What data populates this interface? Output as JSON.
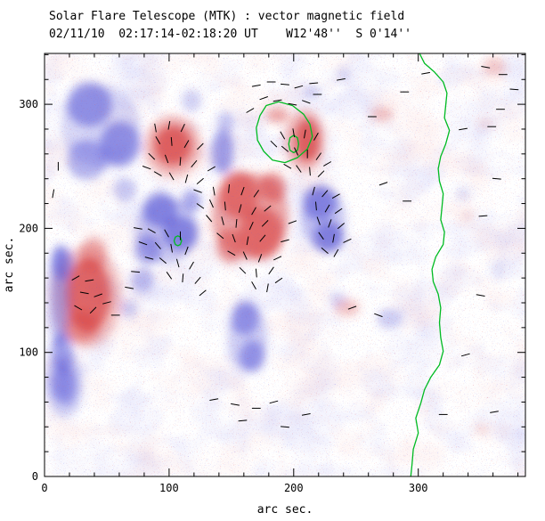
{
  "header": {
    "title": "Solar Flare Telescope (MTK) : vector magnetic field",
    "subtitle": "02/11/10  02:17:14-02:18:20 UT    W12'48''  S 0'14''"
  },
  "chart_data": {
    "type": "heatmap",
    "title": "Solar Flare Telescope (MTK) : vector magnetic field",
    "subtitle": "02/11/10  02:17:14-02:18:20 UT    W12'48''  S 0'14''",
    "xlabel": "arc sec.",
    "ylabel": "arc sec.",
    "xlim": [
      0,
      386
    ],
    "ylim": [
      0,
      341
    ],
    "xticks": [
      0,
      100,
      200,
      300
    ],
    "yticks": [
      0,
      100,
      200,
      300
    ],
    "minor_tick": 20,
    "grid": false,
    "legend": "none",
    "colors": {
      "positive": "#d84040",
      "negative": "#4848d4",
      "contour": "#00bb22",
      "vector": "#000000",
      "background": "#ffffff"
    },
    "blobs_format": "[x, y, rx, ry, opacity, polarity] polarity +1=red(positive) -1=blue(negative), units arc sec",
    "blobs": [
      [
        35,
        146,
        18,
        30,
        0.7,
        1
      ],
      [
        34,
        145,
        28,
        41,
        0.3,
        1
      ],
      [
        39,
        179,
        11,
        14,
        0.4,
        1
      ],
      [
        30,
        121,
        14,
        13,
        0.45,
        1
      ],
      [
        103,
        267,
        15,
        16,
        0.75,
        1
      ],
      [
        103,
        266,
        23,
        25,
        0.35,
        1
      ],
      [
        165,
        210,
        31,
        35,
        0.45,
        1
      ],
      [
        156,
        227,
        16,
        19,
        0.6,
        1
      ],
      [
        174,
        196,
        18,
        21,
        0.6,
        1
      ],
      [
        149,
        186,
        11,
        14,
        0.5,
        1
      ],
      [
        183,
        233,
        11,
        12,
        0.55,
        1
      ],
      [
        211,
        271,
        10,
        17,
        0.75,
        1
      ],
      [
        209,
        271,
        16,
        25,
        0.35,
        1
      ],
      [
        187,
        291,
        9,
        6,
        0.45,
        1
      ],
      [
        271,
        292,
        9,
        6,
        0.3,
        1
      ],
      [
        243,
        136,
        10,
        7,
        0.3,
        1
      ],
      [
        361,
        330,
        9,
        8,
        0.25,
        1
      ],
      [
        339,
        210,
        6,
        5,
        0.18,
        1
      ],
      [
        354,
        285,
        6,
        4,
        0.18,
        1
      ],
      [
        351,
        38,
        6,
        5,
        0.18,
        1
      ],
      [
        36,
        300,
        18,
        18,
        0.5,
        -1
      ],
      [
        61,
        268,
        16,
        18,
        0.5,
        -1
      ],
      [
        34,
        255,
        16,
        16,
        0.4,
        -1
      ],
      [
        45,
        282,
        32,
        33,
        0.22,
        -1
      ],
      [
        65,
        231,
        9,
        10,
        0.3,
        -1
      ],
      [
        93,
        215,
        14,
        14,
        0.55,
        -1
      ],
      [
        109,
        196,
        14,
        14,
        0.55,
        -1
      ],
      [
        83,
        183,
        11,
        12,
        0.45,
        -1
      ],
      [
        98,
        198,
        25,
        27,
        0.28,
        -1
      ],
      [
        118,
        222,
        8,
        9,
        0.45,
        -1
      ],
      [
        12,
        145,
        8,
        42,
        0.4,
        -1
      ],
      [
        14,
        172,
        9,
        14,
        0.45,
        -1
      ],
      [
        14,
        100,
        9,
        16,
        0.45,
        -1
      ],
      [
        143,
        262,
        9,
        18,
        0.5,
        -1
      ],
      [
        145,
        286,
        7,
        8,
        0.3,
        -1
      ],
      [
        221,
        221,
        14,
        14,
        0.55,
        -1
      ],
      [
        228,
        193,
        12,
        13,
        0.55,
        -1
      ],
      [
        224,
        207,
        18,
        25,
        0.28,
        -1
      ],
      [
        161,
        128,
        11,
        14,
        0.45,
        -1
      ],
      [
        167,
        97,
        10,
        13,
        0.45,
        -1
      ],
      [
        163,
        112,
        16,
        27,
        0.26,
        -1
      ],
      [
        16,
        74,
        10,
        16,
        0.45,
        -1
      ],
      [
        16,
        74,
        15,
        27,
        0.26,
        -1
      ],
      [
        277,
        127,
        10,
        8,
        0.28,
        -1
      ],
      [
        68,
        135,
        7,
        7,
        0.28,
        -1
      ],
      [
        336,
        228,
        6,
        6,
        0.16,
        -1
      ],
      [
        215,
        310,
        7,
        5,
        0.28,
        -1
      ],
      [
        364,
        167,
        6,
        8,
        0.16,
        -1
      ],
      [
        240,
        324,
        6,
        4,
        0.22,
        -1
      ],
      [
        118,
        303,
        8,
        9,
        0.25,
        -1
      ],
      [
        79,
        158,
        9,
        10,
        0.35,
        -1
      ],
      [
        235,
        143,
        7,
        6,
        0.22,
        -1
      ]
    ],
    "vectors_format": "[x, y, azimuth_deg] short transverse-field segment centered at (x,y)",
    "vectors": [
      [
        89,
        281,
        100
      ],
      [
        100,
        283,
        80
      ],
      [
        111,
        281,
        65
      ],
      [
        91,
        271,
        120
      ],
      [
        102,
        270,
        95
      ],
      [
        114,
        268,
        60
      ],
      [
        125,
        266,
        45
      ],
      [
        86,
        258,
        135
      ],
      [
        98,
        256,
        110
      ],
      [
        109,
        254,
        85
      ],
      [
        120,
        252,
        50
      ],
      [
        91,
        244,
        150
      ],
      [
        102,
        242,
        120
      ],
      [
        114,
        240,
        75
      ],
      [
        125,
        238,
        40
      ],
      [
        134,
        248,
        30
      ],
      [
        82,
        249,
        160
      ],
      [
        170,
        315,
        10
      ],
      [
        182,
        318,
        0
      ],
      [
        193,
        316,
        175
      ],
      [
        204,
        314,
        15
      ],
      [
        216,
        317,
        5
      ],
      [
        176,
        305,
        20
      ],
      [
        187,
        303,
        10
      ],
      [
        199,
        300,
        170
      ],
      [
        210,
        302,
        160
      ],
      [
        165,
        295,
        30
      ],
      [
        219,
        308,
        0
      ],
      [
        191,
        275,
        120
      ],
      [
        200,
        277,
        100
      ],
      [
        209,
        276,
        80
      ],
      [
        218,
        274,
        60
      ],
      [
        193,
        264,
        140
      ],
      [
        202,
        262,
        115
      ],
      [
        211,
        260,
        90
      ],
      [
        220,
        258,
        55
      ],
      [
        195,
        250,
        150
      ],
      [
        204,
        248,
        125
      ],
      [
        213,
        246,
        95
      ],
      [
        222,
        244,
        45
      ],
      [
        227,
        252,
        30
      ],
      [
        184,
        268,
        135
      ],
      [
        136,
        230,
        100
      ],
      [
        148,
        232,
        85
      ],
      [
        159,
        230,
        70
      ],
      [
        170,
        228,
        55
      ],
      [
        134,
        220,
        115
      ],
      [
        145,
        218,
        95
      ],
      [
        157,
        216,
        75
      ],
      [
        168,
        214,
        60
      ],
      [
        179,
        216,
        40
      ],
      [
        132,
        208,
        130
      ],
      [
        143,
        206,
        105
      ],
      [
        154,
        204,
        85
      ],
      [
        166,
        202,
        65
      ],
      [
        177,
        204,
        45
      ],
      [
        141,
        194,
        140
      ],
      [
        152,
        192,
        110
      ],
      [
        163,
        190,
        80
      ],
      [
        175,
        192,
        50
      ],
      [
        150,
        180,
        150
      ],
      [
        161,
        178,
        115
      ],
      [
        173,
        176,
        70
      ],
      [
        159,
        166,
        135
      ],
      [
        170,
        164,
        95
      ],
      [
        182,
        166,
        55
      ],
      [
        168,
        154,
        120
      ],
      [
        179,
        152,
        80
      ],
      [
        188,
        158,
        35
      ],
      [
        187,
        176,
        25
      ],
      [
        193,
        190,
        15
      ],
      [
        199,
        205,
        20
      ],
      [
        125,
        218,
        145
      ],
      [
        123,
        230,
        160
      ],
      [
        216,
        230,
        75
      ],
      [
        225,
        228,
        50
      ],
      [
        234,
        226,
        30
      ],
      [
        218,
        218,
        95
      ],
      [
        227,
        216,
        60
      ],
      [
        236,
        214,
        35
      ],
      [
        220,
        206,
        110
      ],
      [
        229,
        204,
        70
      ],
      [
        238,
        202,
        40
      ],
      [
        222,
        194,
        125
      ],
      [
        232,
        192,
        80
      ],
      [
        225,
        182,
        140
      ],
      [
        234,
        180,
        60
      ],
      [
        243,
        190,
        25
      ],
      [
        75,
        200,
        170
      ],
      [
        86,
        198,
        150
      ],
      [
        98,
        196,
        120
      ],
      [
        109,
        194,
        90
      ],
      [
        79,
        188,
        160
      ],
      [
        91,
        186,
        130
      ],
      [
        102,
        184,
        100
      ],
      [
        114,
        182,
        70
      ],
      [
        84,
        176,
        165
      ],
      [
        95,
        174,
        140
      ],
      [
        107,
        172,
        105
      ],
      [
        118,
        170,
        60
      ],
      [
        73,
        165,
        175
      ],
      [
        100,
        162,
        125
      ],
      [
        111,
        160,
        85
      ],
      [
        123,
        158,
        50
      ],
      [
        127,
        148,
        40
      ],
      [
        68,
        152,
        170
      ],
      [
        25,
        160,
        30
      ],
      [
        36,
        158,
        10
      ],
      [
        32,
        148,
        170
      ],
      [
        43,
        146,
        20
      ],
      [
        27,
        136,
        150
      ],
      [
        39,
        134,
        45
      ],
      [
        50,
        140,
        15
      ],
      [
        57,
        130,
        0
      ],
      [
        136,
        62,
        10
      ],
      [
        153,
        58,
        170
      ],
      [
        170,
        55,
        0
      ],
      [
        184,
        60,
        15
      ],
      [
        159,
        45,
        5
      ],
      [
        193,
        40,
        175
      ],
      [
        210,
        50,
        10
      ],
      [
        272,
        236,
        20
      ],
      [
        291,
        222,
        0
      ],
      [
        336,
        280,
        10
      ],
      [
        350,
        146,
        170
      ],
      [
        338,
        98,
        15
      ],
      [
        320,
        50,
        0
      ],
      [
        361,
        52,
        10
      ],
      [
        268,
        130,
        160
      ],
      [
        247,
        136,
        20
      ],
      [
        263,
        290,
        0
      ],
      [
        238,
        320,
        10
      ],
      [
        363,
        240,
        175
      ],
      [
        352,
        210,
        5
      ],
      [
        289,
        310,
        0
      ],
      [
        306,
        325,
        10
      ],
      [
        354,
        330,
        170
      ],
      [
        366,
        296,
        0
      ],
      [
        368,
        324,
        0
      ],
      [
        377,
        312,
        175
      ],
      [
        11,
        250,
        90
      ],
      [
        7,
        228,
        80
      ],
      [
        359,
        282,
        0
      ]
    ],
    "contours": [
      {
        "name": "limb-neutral-line",
        "closed": false,
        "points": [
          [
            301,
            341
          ],
          [
            305,
            333
          ],
          [
            313,
            326
          ],
          [
            320,
            318
          ],
          [
            323,
            309
          ],
          [
            322,
            299
          ],
          [
            321,
            289
          ],
          [
            325,
            279
          ],
          [
            322,
            268
          ],
          [
            318,
            258
          ],
          [
            316,
            248
          ],
          [
            317,
            238
          ],
          [
            320,
            228
          ],
          [
            319,
            217
          ],
          [
            318,
            207
          ],
          [
            321,
            197
          ],
          [
            320,
            187
          ],
          [
            314,
            177
          ],
          [
            311,
            167
          ],
          [
            312,
            157
          ],
          [
            316,
            147
          ],
          [
            318,
            136
          ],
          [
            317,
            124
          ],
          [
            318,
            112
          ],
          [
            320,
            101
          ],
          [
            317,
            90
          ],
          [
            310,
            80
          ],
          [
            305,
            70
          ],
          [
            302,
            59
          ],
          [
            298,
            47
          ],
          [
            300,
            35
          ],
          [
            296,
            22
          ],
          [
            295,
            10
          ],
          [
            294,
            0
          ]
        ]
      },
      {
        "name": "flare-region-contour",
        "closed": true,
        "points": [
          [
            178,
            299
          ],
          [
            188,
            302
          ],
          [
            199,
            299
          ],
          [
            208,
            292
          ],
          [
            213,
            284
          ],
          [
            215,
            274
          ],
          [
            211,
            264
          ],
          [
            203,
            257
          ],
          [
            193,
            253
          ],
          [
            183,
            255
          ],
          [
            176,
            262
          ],
          [
            171,
            271
          ],
          [
            170,
            281
          ],
          [
            173,
            291
          ]
        ]
      },
      {
        "name": "flare-region-inner-contour",
        "closed": true,
        "points": [
          [
            204,
            268
          ],
          [
            203,
            273
          ],
          [
            200,
            275
          ],
          [
            197,
            273
          ],
          [
            196,
            268
          ],
          [
            197,
            263
          ],
          [
            200,
            261
          ],
          [
            203,
            263
          ]
        ]
      },
      {
        "name": "small-contour",
        "closed": true,
        "points": [
          [
            110,
            190
          ],
          [
            109,
            193
          ],
          [
            107,
            194
          ],
          [
            105,
            193
          ],
          [
            104,
            190
          ],
          [
            105,
            187
          ],
          [
            107,
            186
          ],
          [
            109,
            187
          ]
        ]
      }
    ]
  }
}
